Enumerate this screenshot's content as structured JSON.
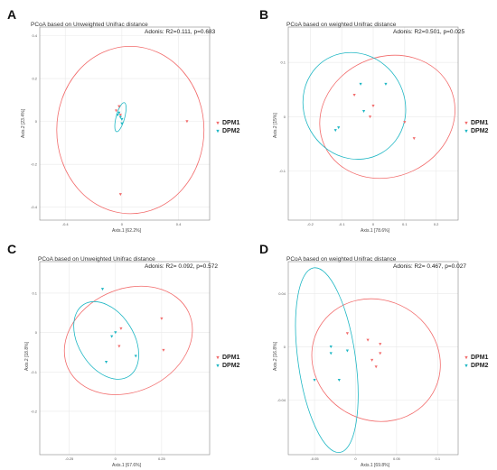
{
  "colors": {
    "DPM1": "#f26c6c",
    "DPM2": "#1fb7c4",
    "grid": "#e9e9e9",
    "frame": "#888888"
  },
  "icons": {
    "DPM1": "triangle-down-marker",
    "DPM2": "triangle-down-marker"
  },
  "chart_data": [
    {
      "panel": "A",
      "type": "scatter",
      "title": "PCoA based on Unweighted Unifrac distance",
      "annotation": "Adonis: R2=0.111, p=0.683",
      "xlabel": "Axis.1  [62.2%]",
      "ylabel": "Axis.2  [23.4%]",
      "xticks": [
        -0.4,
        0.0,
        0.4
      ],
      "yticks": [
        -0.4,
        -0.2,
        0.0,
        0.2,
        0.4
      ],
      "xlim": [
        -0.58,
        0.62
      ],
      "ylim": [
        -0.46,
        0.44
      ],
      "grid": true,
      "legend_position": "right",
      "series": [
        {
          "name": "DPM1",
          "points": [
            [
              -0.04,
              0.05
            ],
            [
              -0.02,
              0.07
            ],
            [
              -0.01,
              0.03
            ],
            [
              0.46,
              0.0
            ],
            [
              -0.01,
              -0.34
            ]
          ],
          "ellipse": {
            "cx": 0.06,
            "cy": -0.04,
            "rx": 0.52,
            "ry": 0.39,
            "angle": 0
          }
        },
        {
          "name": "DPM2",
          "points": [
            [
              -0.03,
              0.03
            ],
            [
              -0.02,
              0.04
            ],
            [
              0.0,
              0.01
            ],
            [
              0.0,
              -0.01
            ],
            [
              -0.01,
              0.02
            ]
          ],
          "ellipse": {
            "cx": -0.01,
            "cy": 0.02,
            "rx": 0.03,
            "ry": 0.07,
            "angle": -15
          }
        }
      ]
    },
    {
      "panel": "B",
      "type": "scatter",
      "title": "PCoA based on weighted Unifrac distance",
      "annotation": "Adonis: R2=0.501, p=0.025",
      "xlabel": "Axis.1  [78.6%]",
      "ylabel": "Axis.2  [15%]",
      "xticks": [
        -0.2,
        -0.1,
        0.0,
        0.1,
        0.2
      ],
      "yticks": [
        -0.1,
        0.0,
        0.1
      ],
      "xlim": [
        -0.27,
        0.27
      ],
      "ylim": [
        -0.19,
        0.165
      ],
      "grid": true,
      "legend_position": "right",
      "series": [
        {
          "name": "DPM1",
          "points": [
            [
              -0.01,
              0.0
            ],
            [
              0.0,
              0.02
            ],
            [
              0.1,
              -0.01
            ],
            [
              0.13,
              -0.04
            ],
            [
              -0.06,
              0.04
            ]
          ],
          "ellipse": {
            "cx": 0.045,
            "cy": 0.0,
            "rx": 0.22,
            "ry": 0.11,
            "angle": 25
          }
        },
        {
          "name": "DPM2",
          "points": [
            [
              -0.04,
              0.06
            ],
            [
              0.04,
              0.06
            ],
            [
              -0.03,
              0.01
            ],
            [
              -0.11,
              -0.02
            ],
            [
              -0.12,
              -0.025
            ]
          ],
          "ellipse": {
            "cx": -0.06,
            "cy": 0.02,
            "rx": 0.16,
            "ry": 0.1,
            "angle": 30
          }
        }
      ]
    },
    {
      "panel": "C",
      "type": "scatter",
      "title": "PCoA based on Unweighted Unifrac distance",
      "annotation": "Adonis: R2= 0.092, p=0.572",
      "xlabel": "Axis.1  [67.6%]",
      "ylabel": "Axis.2  [18.8%]",
      "xticks": [
        -0.25,
        0.0,
        0.25
      ],
      "yticks": [
        -0.2,
        -0.1,
        0.0,
        0.1
      ],
      "xlim": [
        -0.41,
        0.51
      ],
      "ylim": [
        -0.31,
        0.18
      ],
      "grid": true,
      "legend_position": "right",
      "series": [
        {
          "name": "DPM1",
          "points": [
            [
              0.02,
              -0.035
            ],
            [
              0.26,
              -0.045
            ],
            [
              0.03,
              0.01
            ],
            [
              0.25,
              0.035
            ]
          ],
          "ellipse": {
            "cx": 0.07,
            "cy": -0.02,
            "rx": 0.36,
            "ry": 0.13,
            "angle": 25
          }
        },
        {
          "name": "DPM2",
          "points": [
            [
              -0.07,
              0.11
            ],
            [
              0.0,
              0.0
            ],
            [
              -0.02,
              -0.01
            ],
            [
              0.11,
              -0.06
            ],
            [
              -0.05,
              -0.075
            ]
          ],
          "ellipse": {
            "cx": -0.05,
            "cy": -0.02,
            "rx": 0.23,
            "ry": 0.07,
            "angle": -58
          }
        }
      ]
    },
    {
      "panel": "D",
      "type": "scatter",
      "title": "PCoA based on weighted Unifrac distance",
      "annotation": "Adonis: R2= 0.467, p=0.027",
      "xlabel": "Axis.1  [69.8%]",
      "ylabel": "Axis.2  [16.8%]",
      "xticks": [
        -0.05,
        0.0,
        0.05,
        0.1
      ],
      "yticks": [
        -0.04,
        0.0,
        0.04
      ],
      "xlim": [
        -0.082,
        0.125
      ],
      "ylim": [
        -0.081,
        0.064
      ],
      "grid": true,
      "legend_position": "right",
      "series": [
        {
          "name": "DPM1",
          "points": [
            [
              -0.01,
              0.01
            ],
            [
              0.015,
              0.005
            ],
            [
              0.03,
              -0.005
            ],
            [
              0.03,
              0.002
            ],
            [
              0.02,
              -0.01
            ],
            [
              0.025,
              -0.015
            ]
          ],
          "ellipse": {
            "cx": 0.025,
            "cy": -0.01,
            "rx": 0.08,
            "ry": 0.045,
            "angle": -30
          }
        },
        {
          "name": "DPM2",
          "points": [
            [
              -0.03,
              0.0
            ],
            [
              -0.01,
              -0.003
            ],
            [
              -0.05,
              -0.025
            ],
            [
              -0.03,
              -0.005
            ],
            [
              -0.02,
              -0.025
            ]
          ],
          "ellipse": {
            "cx": -0.035,
            "cy": -0.01,
            "rx": 0.035,
            "ry": 0.07,
            "angle": 8
          }
        }
      ]
    }
  ],
  "legend": [
    "DPM1",
    "DPM2"
  ]
}
